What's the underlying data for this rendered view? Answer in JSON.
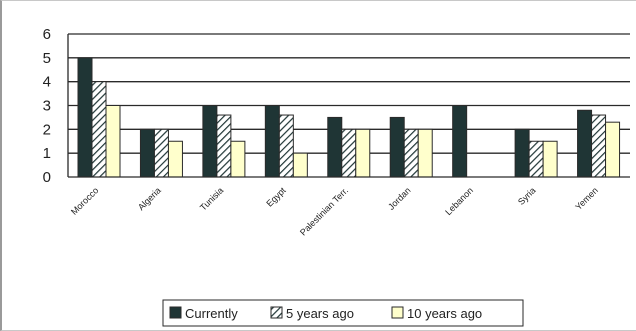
{
  "chart_data": {
    "type": "bar",
    "categories": [
      "Morocco",
      "Algeria",
      "Tunisia",
      "Egypt",
      "Palestinian Terr.",
      "Jordan",
      "Lebanon",
      "Syria",
      "Yemen"
    ],
    "series": [
      {
        "name": "Currently",
        "values": [
          5,
          2,
          3,
          3,
          2.5,
          2.5,
          3,
          2,
          2.8
        ],
        "color": "#1f3535",
        "pattern": "solid"
      },
      {
        "name": "5 years ago",
        "values": [
          4,
          2,
          2.6,
          2.6,
          2,
          2,
          null,
          1.5,
          2.6
        ],
        "color": "#ffffff",
        "pattern": "hatch"
      },
      {
        "name": "10 years ago",
        "values": [
          3,
          1.5,
          1.5,
          1,
          2,
          2,
          null,
          1.5,
          2.3
        ],
        "color": "#ffffcc",
        "pattern": "solid"
      }
    ],
    "ylim": [
      0,
      6
    ],
    "yticks": [
      "0",
      "1",
      "2",
      "3",
      "4",
      "5",
      "6"
    ],
    "grid": true,
    "legend_position": "bottom",
    "legend_labels": [
      "Currently",
      "5 years ago",
      "10 years ago"
    ]
  }
}
